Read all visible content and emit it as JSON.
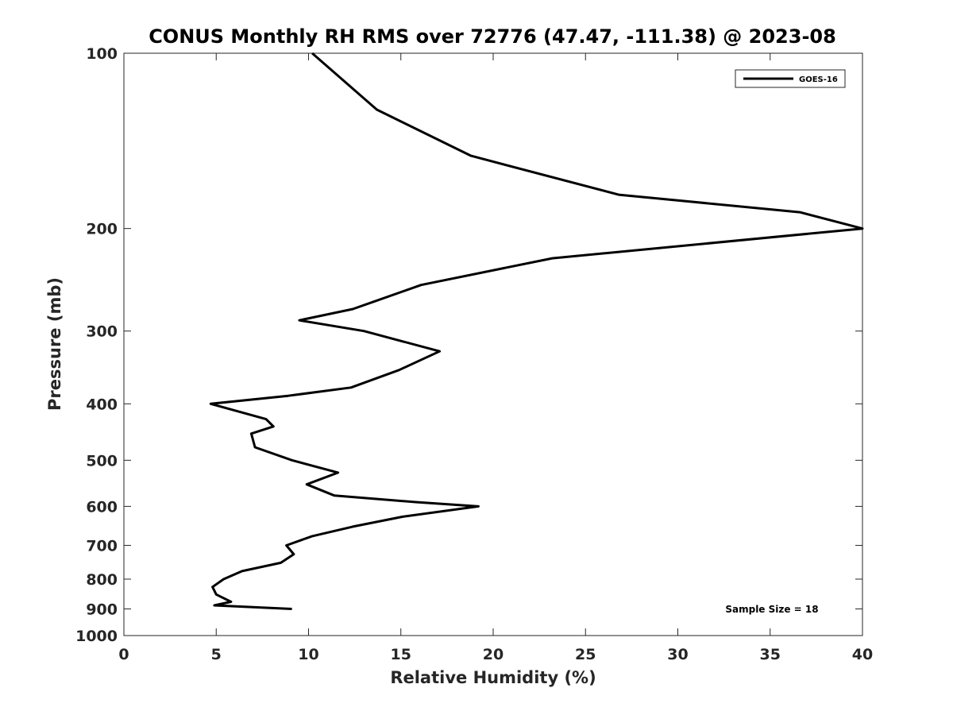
{
  "chart_data": {
    "type": "line",
    "title": "CONUS Monthly RH RMS over 72776 (47.47, -111.38) @ 2023-08",
    "xlabel": "Relative Humidity (%)",
    "ylabel": "Pressure (mb)",
    "xlim": [
      0,
      40
    ],
    "ylim": [
      100,
      1000
    ],
    "y_scale": "log",
    "y_reversed": true,
    "x_ticks": [
      0,
      5,
      10,
      15,
      20,
      25,
      30,
      35,
      40
    ],
    "x_tick_labels": [
      "0",
      "5",
      "10",
      "15",
      "20",
      "25",
      "30",
      "35",
      "40"
    ],
    "y_ticks": [
      100,
      200,
      300,
      400,
      500,
      600,
      700,
      800,
      900,
      1000
    ],
    "y_tick_labels": [
      "100",
      "200",
      "300",
      "400",
      "500",
      "600",
      "700",
      "800",
      "900",
      "1000"
    ],
    "grid": false,
    "legend_position": "top-right",
    "annotation": "Sample Size = 18",
    "series": [
      {
        "name": "GOES-16",
        "color": "#000000",
        "points": [
          [
            10.2,
            100
          ],
          [
            13.7,
            125
          ],
          [
            18.8,
            150
          ],
          [
            26.8,
            175
          ],
          [
            36.6,
            187.5
          ],
          [
            40.0,
            200
          ],
          [
            23.2,
            225
          ],
          [
            16.1,
            250
          ],
          [
            12.4,
            275
          ],
          [
            9.5,
            287.5
          ],
          [
            13.0,
            300
          ],
          [
            17.1,
            325
          ],
          [
            14.9,
            350
          ],
          [
            12.3,
            375
          ],
          [
            8.9,
            387.5
          ],
          [
            4.7,
            400
          ],
          [
            7.7,
            425
          ],
          [
            8.1,
            437.5
          ],
          [
            6.9,
            450
          ],
          [
            7.1,
            475
          ],
          [
            9.1,
            500
          ],
          [
            11.6,
            525
          ],
          [
            9.9,
            550
          ],
          [
            11.4,
            575
          ],
          [
            15.8,
            590
          ],
          [
            19.2,
            600
          ],
          [
            15.1,
            625
          ],
          [
            12.4,
            650
          ],
          [
            10.2,
            675
          ],
          [
            8.8,
            700
          ],
          [
            9.2,
            725
          ],
          [
            8.5,
            750
          ],
          [
            6.4,
            775
          ],
          [
            5.4,
            800
          ],
          [
            4.8,
            825
          ],
          [
            5.0,
            850
          ],
          [
            5.8,
            875
          ],
          [
            4.9,
            887.5
          ],
          [
            9.1,
            900
          ]
        ]
      }
    ]
  }
}
